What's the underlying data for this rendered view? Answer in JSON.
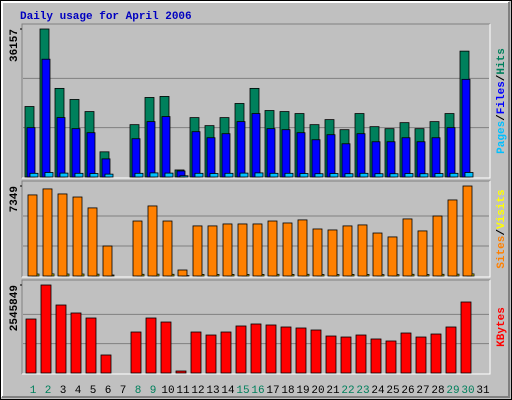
{
  "title": "Daily usage for April 2006",
  "legend_separator": "/",
  "chart_data": [
    {
      "type": "bar",
      "y_label_side": "right",
      "series": [
        {
          "name": "Pages",
          "color": "#00c0ff",
          "values": [
            900,
            1100,
            950,
            900,
            850,
            700,
            0,
            900,
            1000,
            950,
            300,
            900,
            850,
            900,
            950,
            1000,
            900,
            900,
            850,
            800,
            850,
            800,
            900,
            800,
            800,
            850,
            800,
            850,
            900,
            1100,
            0
          ]
        },
        {
          "name": "Files",
          "color": "#0000ff",
          "values": [
            12050,
            28780,
            14510,
            11810,
            10820,
            4430,
            0,
            9350,
            13530,
            14760,
            1480,
            11070,
            9590,
            10580,
            13530,
            15500,
            11810,
            11560,
            10820,
            9100,
            10330,
            8120,
            10580,
            8610,
            8610,
            9590,
            8610,
            9590,
            12050,
            23860,
            0
          ]
        },
        {
          "name": "Hits",
          "color": "#00805c",
          "values": [
            17220,
            36157,
            21650,
            18940,
            15990,
            6150,
            0,
            12790,
            19430,
            19680,
            1720,
            14510,
            12550,
            14510,
            17960,
            21650,
            16240,
            15990,
            15500,
            12790,
            14020,
            11560,
            15500,
            12300,
            11810,
            13280,
            11810,
            13530,
            15500,
            30750,
            0
          ]
        }
      ],
      "ylim": [
        0,
        36157
      ],
      "yticks": [
        36157
      ],
      "grid_divisions": 3
    },
    {
      "type": "bar",
      "series": [
        {
          "name": "Sites",
          "color": "#ff8000",
          "values": [
            6620,
            7110,
            6700,
            6450,
            5560,
            2450,
            0,
            4490,
            5720,
            4490,
            490,
            4090,
            4090,
            4250,
            4250,
            4250,
            4490,
            4330,
            4580,
            3840,
            3760,
            4090,
            4170,
            3510,
            3190,
            4660,
            3680,
            4900,
            6210,
            7349,
            0
          ]
        },
        {
          "name": "Visits",
          "color": "#ffff00",
          "values": [
            160,
            170,
            160,
            160,
            150,
            80,
            0,
            140,
            150,
            140,
            30,
            130,
            130,
            130,
            130,
            130,
            140,
            130,
            140,
            120,
            120,
            130,
            130,
            110,
            110,
            140,
            120,
            140,
            150,
            170,
            0
          ]
        }
      ],
      "ylim": [
        0,
        7349
      ],
      "yticks": [
        7349
      ],
      "grid_divisions": 3
    },
    {
      "type": "bar",
      "categories": [
        "1",
        "2",
        "3",
        "4",
        "5",
        "6",
        "7",
        "8",
        "9",
        "10",
        "11",
        "12",
        "13",
        "14",
        "15",
        "16",
        "17",
        "18",
        "19",
        "20",
        "21",
        "22",
        "23",
        "24",
        "25",
        "26",
        "27",
        "28",
        "29",
        "30",
        "31"
      ],
      "highlight_categories": [
        0,
        1,
        7,
        8,
        14,
        15,
        21,
        22,
        28,
        29
      ],
      "highlight_color": "#00805c",
      "series": [
        {
          "name": "KBytes",
          "color": "#ff0000",
          "values": [
            1562000,
            2545849,
            1967000,
            1736000,
            1591000,
            521000,
            0,
            1186000,
            1591000,
            1475000,
            58000,
            1186000,
            1099000,
            1186000,
            1360000,
            1418000,
            1389000,
            1331000,
            1302000,
            1244000,
            1070000,
            1041000,
            1099000,
            984000,
            926000,
            1157000,
            1041000,
            1128000,
            1331000,
            2054000,
            0
          ]
        }
      ],
      "ylim": [
        0,
        2545849
      ],
      "yticks": [
        2545849
      ],
      "grid_divisions": 3
    }
  ]
}
